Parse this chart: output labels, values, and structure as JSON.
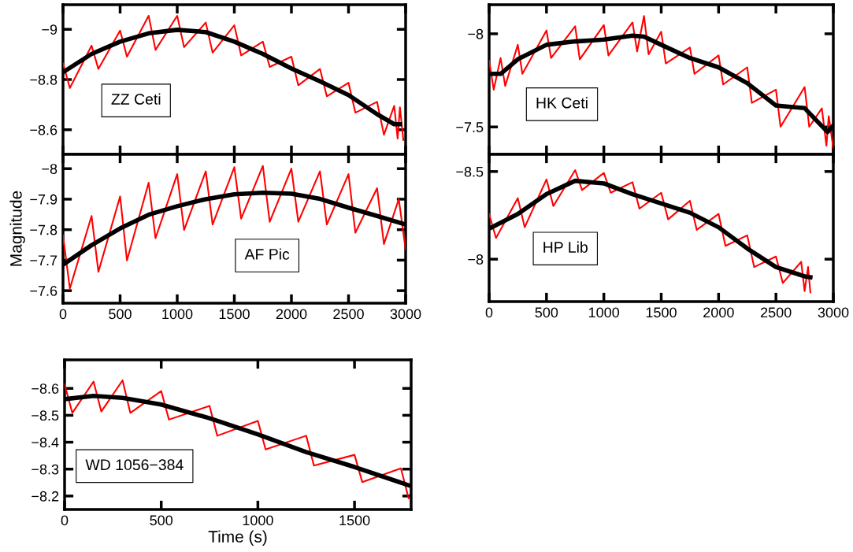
{
  "chart_data": [
    {
      "type": "line",
      "xlim": [
        0,
        3000
      ],
      "ylim": [
        -8.502,
        -9.098
      ],
      "xticks": [
        0,
        500,
        1000,
        1500,
        2000,
        2500,
        3000
      ],
      "yticks": [
        {
          "value": -9,
          "label": "−9"
        },
        {
          "value": -8.8,
          "label": "−8.8"
        },
        {
          "value": -8.6,
          "label": "−8.6"
        }
      ],
      "tick_labels": "y",
      "grid": false,
      "annotations": [
        "ZZ Ceti"
      ],
      "series": [
        {
          "color": "#ff0000",
          "x": [
            0,
            60,
            250,
            310,
            500,
            560,
            750,
            810,
            1000,
            1060,
            1250,
            1310,
            1500,
            1560,
            1750,
            1810,
            2000,
            2060,
            2250,
            2310,
            2500,
            2560,
            2750,
            2810,
            2900,
            2930,
            2950,
            2980
          ],
          "values": [
            -8.864,
            -8.766,
            -8.935,
            -8.842,
            -8.995,
            -8.891,
            -9.054,
            -8.918,
            -9.054,
            -8.929,
            -9.027,
            -8.907,
            -9.016,
            -8.896,
            -8.951,
            -8.85,
            -8.891,
            -8.777,
            -8.842,
            -8.733,
            -8.787,
            -8.668,
            -8.711,
            -8.58,
            -8.695,
            -8.565,
            -8.689,
            -8.559
          ]
        },
        {
          "color": "#000000",
          "x": [
            0,
            250,
            500,
            750,
            1000,
            1250,
            1500,
            1750,
            2000,
            2250,
            2500,
            2750,
            2900,
            2950
          ],
          "values": [
            -8.829,
            -8.902,
            -8.951,
            -8.984,
            -8.998,
            -8.989,
            -8.951,
            -8.902,
            -8.844,
            -8.793,
            -8.738,
            -8.662,
            -8.622,
            -8.622
          ]
        }
      ]
    },
    {
      "type": "line",
      "xlim": [
        0,
        3000
      ],
      "ylim": [
        -7.559,
        -8.047
      ],
      "xticks": [
        0,
        500,
        1000,
        1500,
        2000,
        2500,
        3000
      ],
      "yticks": [
        {
          "value": -8,
          "label": "−8"
        },
        {
          "value": -7.9,
          "label": "−7.9"
        },
        {
          "value": -7.8,
          "label": "−7.8"
        },
        {
          "value": -7.7,
          "label": "−7.7"
        },
        {
          "value": -7.6,
          "label": "−7.6"
        }
      ],
      "ylabel": "Magnitude",
      "grid": false,
      "annotations": [
        "AF Pic"
      ],
      "series": [
        {
          "color": "#ff0000",
          "x": [
            0,
            60,
            250,
            310,
            500,
            560,
            750,
            810,
            1000,
            1060,
            1250,
            1310,
            1500,
            1560,
            1750,
            1810,
            2000,
            2060,
            2250,
            2310,
            2500,
            2560,
            2750,
            2810,
            2940,
            3000
          ],
          "values": [
            -7.781,
            -7.607,
            -7.845,
            -7.662,
            -7.909,
            -7.699,
            -7.954,
            -7.772,
            -7.982,
            -7.799,
            -7.991,
            -7.817,
            -8.005,
            -7.836,
            -8.009,
            -7.826,
            -8.0,
            -7.826,
            -7.991,
            -7.817,
            -7.982,
            -7.79,
            -7.936,
            -7.753,
            -7.9,
            -7.735
          ]
        },
        {
          "color": "#000000",
          "x": [
            0,
            250,
            500,
            750,
            1000,
            1250,
            1500,
            1750,
            2000,
            2250,
            2500,
            2750,
            3000
          ],
          "values": [
            -7.685,
            -7.749,
            -7.804,
            -7.849,
            -7.877,
            -7.9,
            -7.916,
            -7.921,
            -7.918,
            -7.901,
            -7.872,
            -7.845,
            -7.817
          ]
        }
      ]
    },
    {
      "type": "line",
      "xlim": [
        0,
        3000
      ],
      "ylim": [
        -7.353,
        -8.156
      ],
      "xticks": [
        0,
        500,
        1000,
        1500,
        2000,
        2500,
        3000
      ],
      "yticks": [
        {
          "value": -8,
          "label": "−8"
        },
        {
          "value": -7.5,
          "label": "−7.5"
        }
      ],
      "tick_labels": "y",
      "grid": false,
      "annotations": [
        "HK Ceti"
      ],
      "series": [
        {
          "color": "#ff0000",
          "x": [
            0,
            40,
            100,
            140,
            250,
            290,
            500,
            540,
            750,
            790,
            1000,
            1040,
            1250,
            1290,
            1350,
            1390,
            1500,
            1540,
            1750,
            1790,
            2000,
            2040,
            2250,
            2290,
            2500,
            2540,
            2750,
            2790,
            2900,
            2940,
            2960,
            3000
          ],
          "values": [
            -7.856,
            -7.7,
            -7.87,
            -7.72,
            -7.941,
            -7.785,
            -8.018,
            -7.87,
            -8.04,
            -7.863,
            -8.047,
            -7.884,
            -8.061,
            -7.905,
            -8.096,
            -7.89,
            -8.011,
            -7.841,
            -7.926,
            -7.785,
            -7.884,
            -7.728,
            -7.82,
            -7.629,
            -7.7,
            -7.501,
            -7.714,
            -7.501,
            -7.6,
            -7.4,
            -7.558,
            -7.388
          ]
        },
        {
          "color": "#000000",
          "x": [
            0,
            100,
            250,
            500,
            750,
            1000,
            1250,
            1350,
            1500,
            1750,
            2000,
            2250,
            2500,
            2750,
            2950,
            3000
          ],
          "values": [
            -7.785,
            -7.785,
            -7.863,
            -7.941,
            -7.959,
            -7.969,
            -7.99,
            -7.985,
            -7.941,
            -7.87,
            -7.82,
            -7.735,
            -7.615,
            -7.601,
            -7.473,
            -7.508
          ]
        }
      ]
    },
    {
      "type": "line",
      "xlim": [
        0,
        3000
      ],
      "ylim": [
        -7.758,
        -8.598
      ],
      "xticks": [
        0,
        500,
        1000,
        1500,
        2000,
        2500,
        3000
      ],
      "yticks": [
        {
          "value": -8.5,
          "label": "−8.5"
        },
        {
          "value": -8,
          "label": "−8"
        }
      ],
      "grid": false,
      "annotations": [
        "HP Lib"
      ],
      "series": [
        {
          "color": "#ff0000",
          "x": [
            0,
            60,
            250,
            310,
            500,
            560,
            750,
            810,
            1000,
            1060,
            1250,
            1310,
            1500,
            1560,
            1750,
            1810,
            2000,
            2060,
            2250,
            2310,
            2500,
            2560,
            2720,
            2750,
            2780,
            2800
          ],
          "values": [
            -8.258,
            -8.121,
            -8.348,
            -8.182,
            -8.455,
            -8.303,
            -8.508,
            -8.394,
            -8.492,
            -8.379,
            -8.439,
            -8.288,
            -8.379,
            -8.227,
            -8.333,
            -8.167,
            -8.258,
            -8.076,
            -8.136,
            -7.955,
            -8.015,
            -7.864,
            -7.985,
            -7.818,
            -7.955,
            -7.811
          ]
        },
        {
          "color": "#000000",
          "x": [
            0,
            250,
            500,
            750,
            1000,
            1250,
            1500,
            1750,
            2000,
            2250,
            2500,
            2750,
            2800
          ],
          "values": [
            -8.174,
            -8.258,
            -8.371,
            -8.447,
            -8.432,
            -8.371,
            -8.318,
            -8.265,
            -8.182,
            -8.061,
            -7.955,
            -7.902,
            -7.897
          ]
        }
      ]
    },
    {
      "type": "line",
      "xlim": [
        0,
        1793
      ],
      "ylim": [
        -8.15,
        -8.706
      ],
      "xticks": [
        0,
        500,
        1000,
        1500
      ],
      "yticks": [
        {
          "value": -8.6,
          "label": "−8.6"
        },
        {
          "value": -8.5,
          "label": "−8.5"
        },
        {
          "value": -8.4,
          "label": "−8.4"
        },
        {
          "value": -8.3,
          "label": "−8.3"
        },
        {
          "value": -8.2,
          "label": "−8.2"
        }
      ],
      "xlabel": "Time (s)",
      "grid": false,
      "annotations": [
        "WD 1056−384"
      ],
      "series": [
        {
          "color": "#ff0000",
          "x": [
            0,
            40,
            150,
            190,
            300,
            340,
            500,
            540,
            750,
            790,
            1000,
            1040,
            1250,
            1290,
            1500,
            1540,
            1740,
            1780
          ],
          "values": [
            -8.615,
            -8.509,
            -8.625,
            -8.514,
            -8.63,
            -8.509,
            -8.59,
            -8.484,
            -8.535,
            -8.424,
            -8.479,
            -8.373,
            -8.424,
            -8.313,
            -8.353,
            -8.252,
            -8.303,
            -8.192
          ]
        },
        {
          "color": "#000000",
          "x": [
            0,
            150,
            300,
            500,
            750,
            1000,
            1250,
            1500,
            1780
          ],
          "values": [
            -8.56,
            -8.572,
            -8.565,
            -8.54,
            -8.489,
            -8.429,
            -8.363,
            -8.308,
            -8.24
          ]
        }
      ]
    }
  ]
}
